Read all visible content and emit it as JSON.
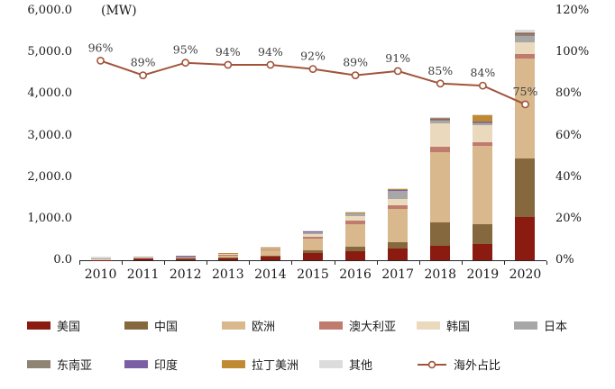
{
  "chart_data": {
    "type": "bar",
    "subtype": "stacked-bar-with-line",
    "unit_label": "(MW)",
    "categories": [
      "2010",
      "2011",
      "2012",
      "2013",
      "2014",
      "2015",
      "2016",
      "2017",
      "2018",
      "2019",
      "2020"
    ],
    "bar_series": [
      {
        "id": "usa",
        "name": "美国",
        "color": "#8b1a10",
        "values": [
          5,
          60,
          30,
          50,
          80,
          180,
          220,
          280,
          350,
          380,
          1050
        ]
      },
      {
        "id": "china",
        "name": "中国",
        "color": "#85683e",
        "values": [
          0,
          5,
          10,
          20,
          30,
          60,
          100,
          150,
          550,
          480,
          1400
        ]
      },
      {
        "id": "europe",
        "name": "欧洲",
        "color": "#d8b88c",
        "values": [
          10,
          5,
          30,
          60,
          120,
          280,
          550,
          800,
          1700,
          1900,
          2400
        ]
      },
      {
        "id": "australia",
        "name": "澳大利亚",
        "color": "#bf7b6e",
        "values": [
          0,
          0,
          5,
          10,
          20,
          40,
          80,
          100,
          120,
          80,
          100
        ]
      },
      {
        "id": "korea",
        "name": "韩国",
        "color": "#ead9bc",
        "values": [
          5,
          5,
          10,
          20,
          30,
          60,
          120,
          150,
          580,
          400,
          300
        ]
      },
      {
        "id": "japan",
        "name": "日本",
        "color": "#a7a7a7",
        "values": [
          20,
          5,
          10,
          15,
          20,
          60,
          60,
          200,
          80,
          60,
          150
        ]
      },
      {
        "id": "southeast-asia",
        "name": "东南亚",
        "color": "#8e8474",
        "values": [
          0,
          0,
          0,
          0,
          0,
          10,
          10,
          10,
          10,
          20,
          30
        ]
      },
      {
        "id": "india",
        "name": "印度",
        "color": "#7b5fa5",
        "values": [
          0,
          0,
          10,
          0,
          0,
          5,
          5,
          5,
          5,
          10,
          20
        ]
      },
      {
        "id": "latin-america",
        "name": "拉丁美洲",
        "color": "#c08a33",
        "values": [
          0,
          0,
          0,
          5,
          10,
          10,
          10,
          10,
          20,
          150,
          30
        ]
      },
      {
        "id": "other",
        "name": "其他",
        "color": "#dcdcdc",
        "values": [
          50,
          0,
          0,
          0,
          10,
          20,
          20,
          30,
          30,
          20,
          70
        ]
      }
    ],
    "line_series": {
      "id": "overseas-share",
      "name": "海外占比",
      "color": "#a2543b",
      "values": [
        96,
        89,
        95,
        94,
        94,
        92,
        89,
        91,
        85,
        84,
        75
      ],
      "labels": [
        "96%",
        "89%",
        "95%",
        "94%",
        "94%",
        "92%",
        "89%",
        "91%",
        "85%",
        "84%",
        "75%"
      ]
    },
    "left_axis": {
      "min": 0,
      "max": 6000,
      "ticks": [
        "0.0",
        "1,000.0",
        "2,000.0",
        "3,000.0",
        "4,000.0",
        "5,000.0",
        "6,000.0"
      ]
    },
    "right_axis": {
      "min": 0,
      "max": 120,
      "ticks": [
        "0%",
        "20%",
        "40%",
        "60%",
        "80%",
        "100%",
        "120%"
      ]
    },
    "legend_rows": [
      [
        "usa",
        "china",
        "europe",
        "australia",
        "korea",
        "japan"
      ],
      [
        "southeast-asia",
        "india",
        "latin-america",
        "other",
        "overseas-share"
      ]
    ],
    "legend_position": "bottom",
    "grid": false
  }
}
